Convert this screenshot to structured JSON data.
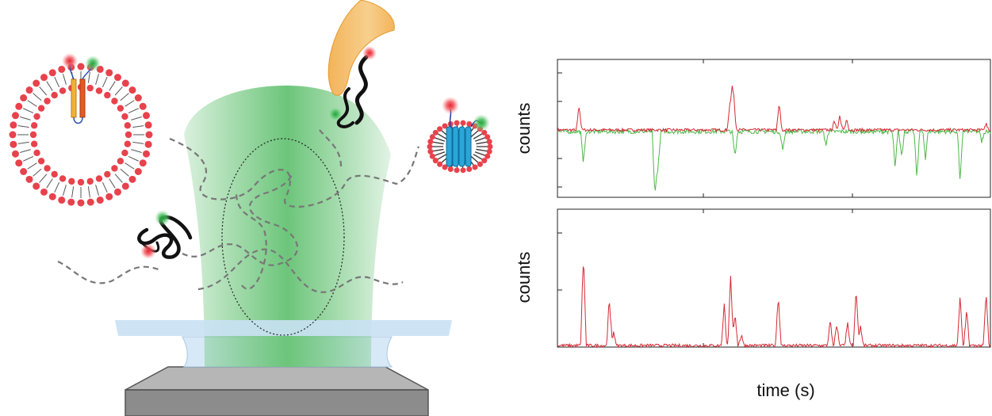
{
  "figure": {
    "top_panel": {
      "ylabel": "counts"
    },
    "bottom_panel": {
      "ylabel": "counts"
    },
    "xlabel": "time (s)"
  },
  "colors": {
    "beam_green": "#6cc57a",
    "lipid_head": "#e8424c",
    "glass": "#cfe3f3",
    "objective": "#8c8c8c",
    "trace_red": "#d42a34",
    "trace_green": "#4db848",
    "diffusion_path": "#777777",
    "nanodisc_protein": "#2aa6d9",
    "chaperone": "#f0a640"
  },
  "icons": [
    "liposome-icon",
    "nanodisc-icon",
    "chaperone-icon",
    "unfolded-protein-icon",
    "dye-red-icon",
    "dye-green-icon"
  ],
  "chart_data": [
    {
      "type": "line",
      "panel": "top",
      "ylabel": "counts",
      "series": [
        {
          "name": "",
          "color": "#d42a34",
          "spikes": [
            [
              0.05,
              0.35
            ],
            [
              0.398,
              0.35
            ],
            [
              0.404,
              0.58
            ],
            [
              0.408,
              0.28
            ],
            [
              0.512,
              0.4
            ],
            [
              0.64,
              0.14
            ],
            [
              0.652,
              0.2
            ],
            [
              0.668,
              0.16
            ],
            [
              0.99,
              0.1
            ]
          ]
        },
        {
          "name": "",
          "color": "#4db848",
          "spikes": [
            [
              0.06,
              -0.45
            ],
            [
              0.225,
              -0.95
            ],
            [
              0.232,
              -0.6
            ],
            [
              0.41,
              -0.35
            ],
            [
              0.52,
              -0.3
            ],
            [
              0.62,
              -0.2
            ],
            [
              0.78,
              -0.55
            ],
            [
              0.795,
              -0.42
            ],
            [
              0.83,
              -0.75
            ],
            [
              0.85,
              -0.4
            ],
            [
              0.93,
              -0.72
            ],
            [
              0.98,
              -0.15
            ]
          ]
        }
      ]
    },
    {
      "type": "line",
      "panel": "bottom",
      "ylabel": "counts",
      "series": [
        {
          "name": "",
          "color": "#d42a34",
          "spikes": [
            [
              0.06,
              0.83
            ],
            [
              0.12,
              0.43
            ],
            [
              0.13,
              0.12
            ],
            [
              0.385,
              0.38
            ],
            [
              0.4,
              0.61
            ],
            [
              0.41,
              0.3
            ],
            [
              0.425,
              0.1
            ],
            [
              0.51,
              0.47
            ],
            [
              0.63,
              0.22
            ],
            [
              0.645,
              0.2
            ],
            [
              0.67,
              0.2
            ],
            [
              0.69,
              0.52
            ],
            [
              0.7,
              0.18
            ],
            [
              0.93,
              0.45
            ],
            [
              0.945,
              0.32
            ],
            [
              0.99,
              0.47
            ]
          ]
        }
      ]
    }
  ]
}
